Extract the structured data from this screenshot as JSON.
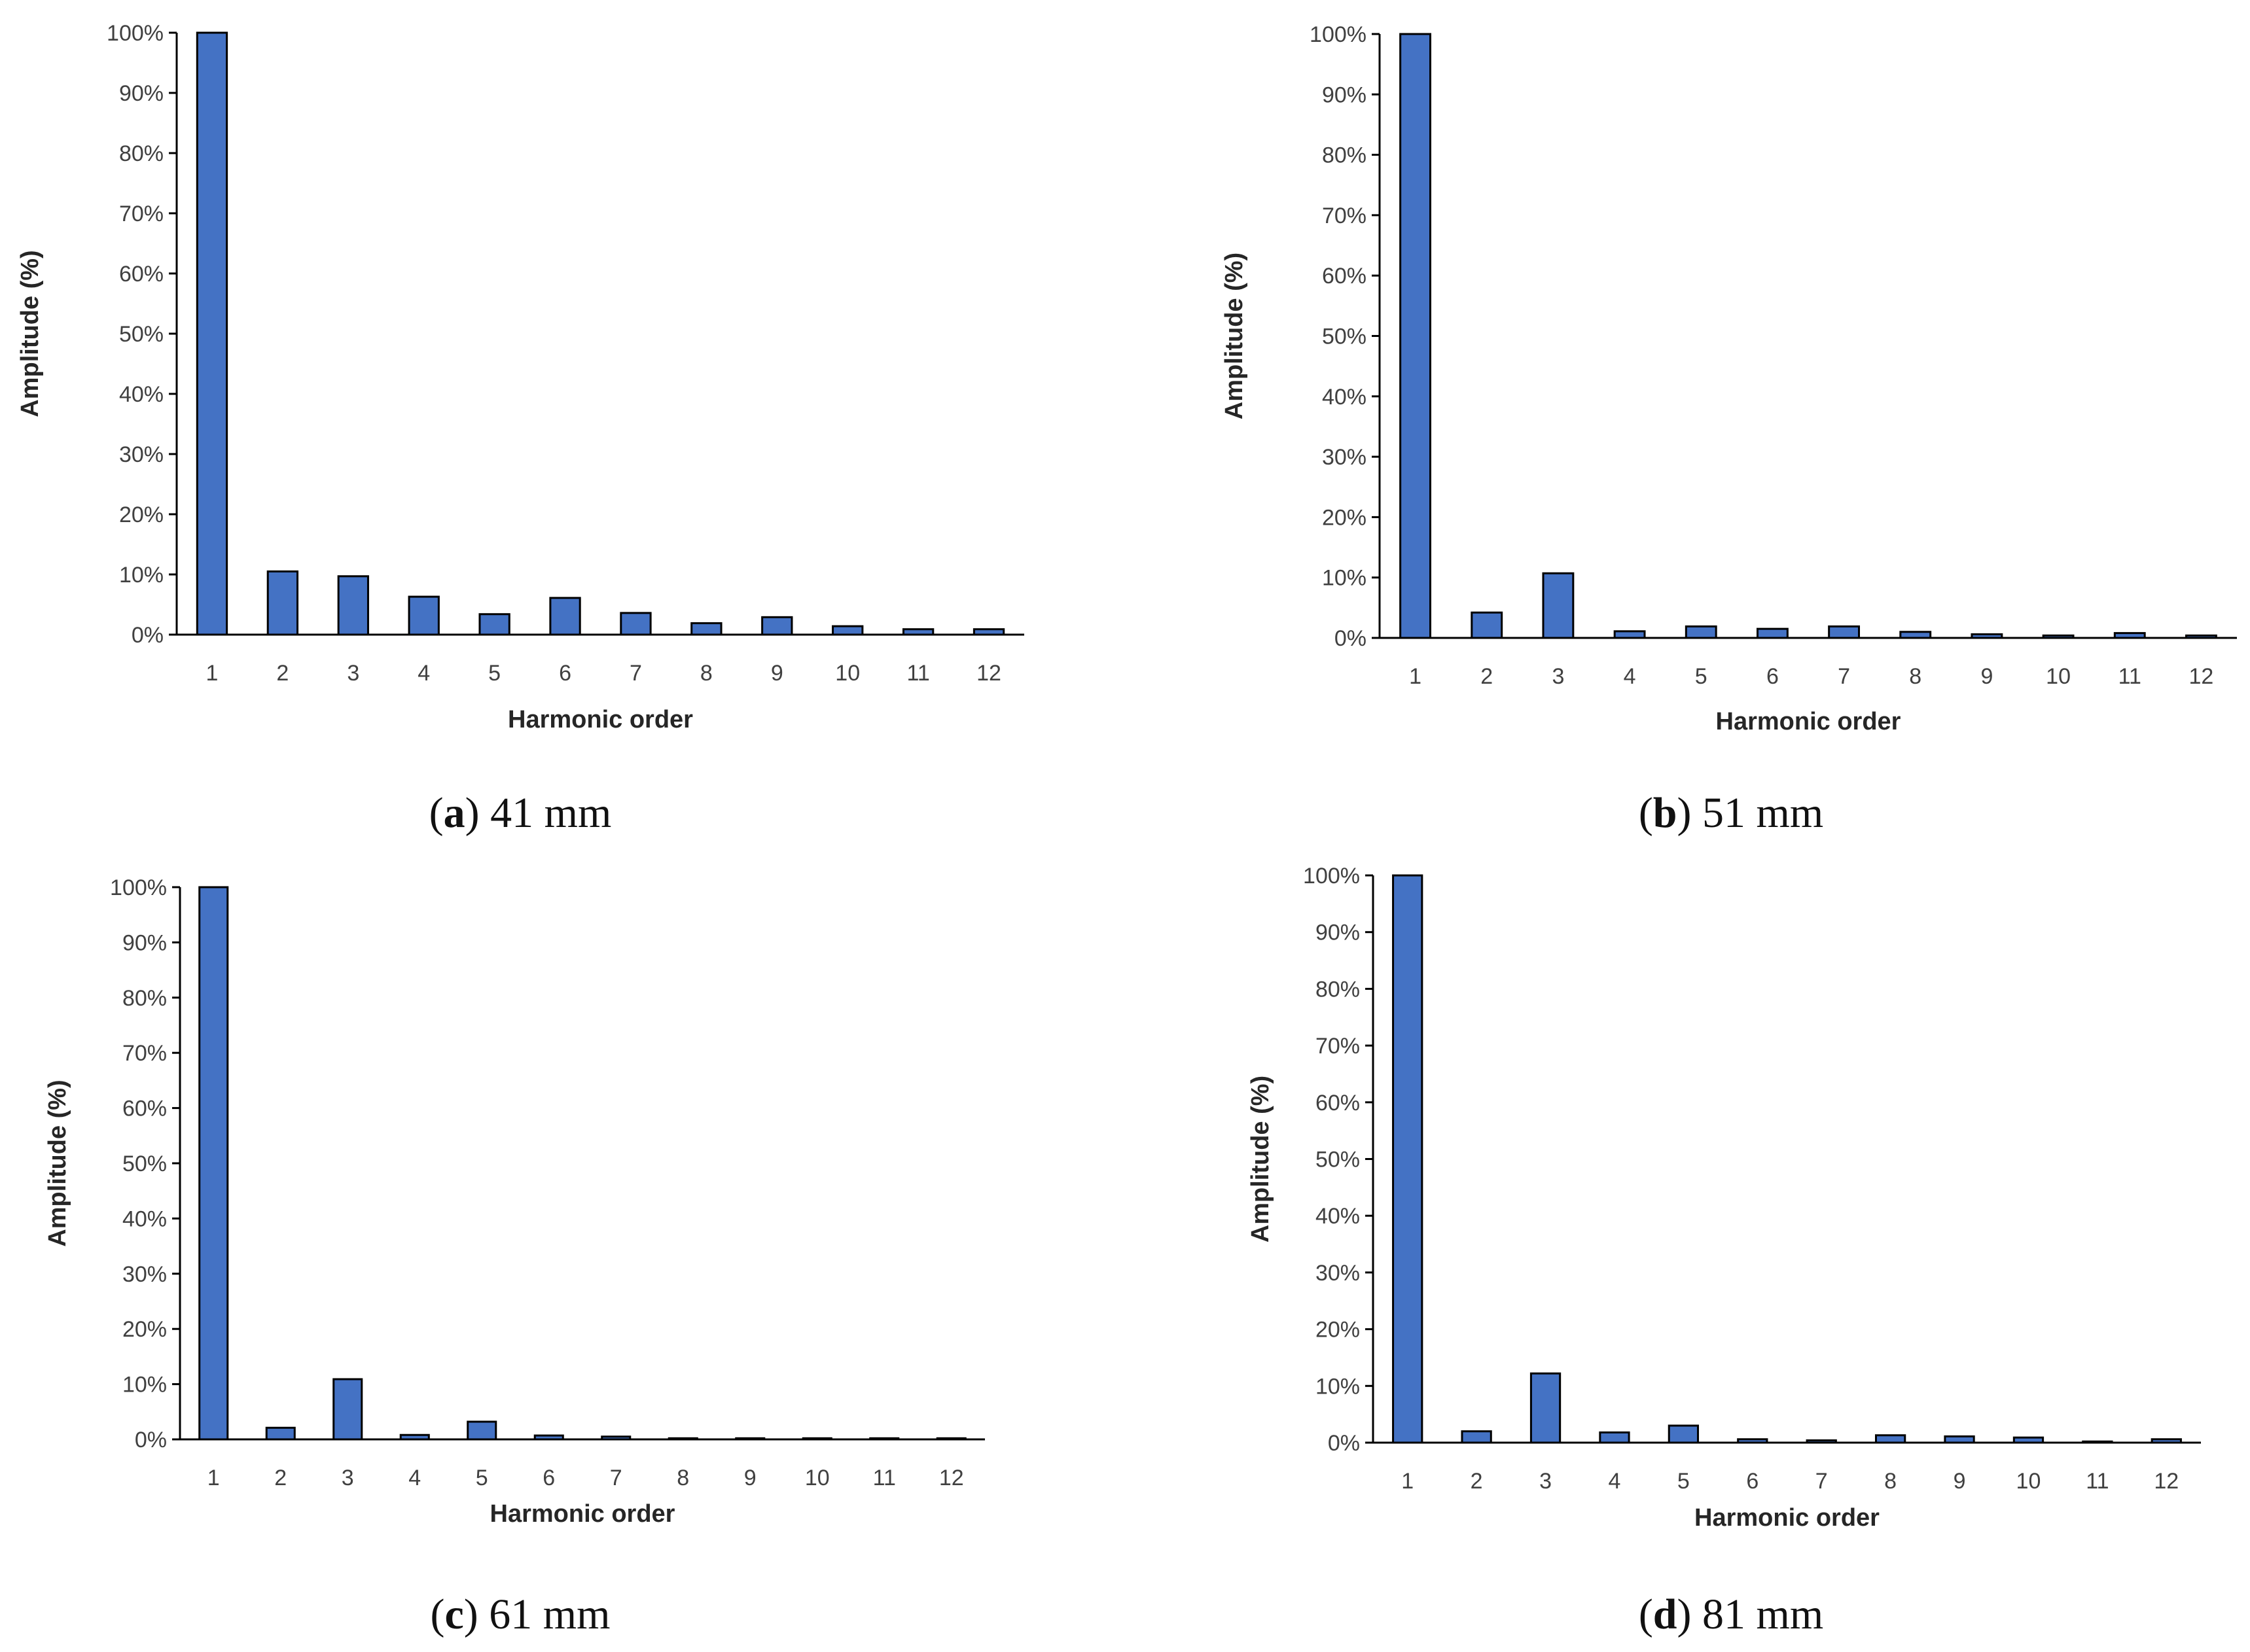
{
  "chart_data": [
    {
      "type": "bar",
      "panel_letter": "a",
      "caption": "41 mm",
      "categories": [
        "1",
        "2",
        "3",
        "4",
        "5",
        "6",
        "7",
        "8",
        "9",
        "10",
        "11",
        "12"
      ],
      "values": [
        100,
        10.5,
        9.7,
        6.3,
        3.4,
        6.1,
        3.6,
        1.9,
        2.9,
        1.4,
        0.9,
        0.9
      ],
      "xlabel": "Harmonic order",
      "ylabel": "Amplitude (%)",
      "ylim": [
        0,
        100
      ],
      "yticks": [
        "0%",
        "10%",
        "20%",
        "30%",
        "40%",
        "50%",
        "60%",
        "70%",
        "80%",
        "90%",
        "100%"
      ],
      "grid": false,
      "bar_color": "#4472C4"
    },
    {
      "type": "bar",
      "panel_letter": "b",
      "caption": "51 mm",
      "categories": [
        "1",
        "2",
        "3",
        "4",
        "5",
        "6",
        "7",
        "8",
        "9",
        "10",
        "11",
        "12"
      ],
      "values": [
        100,
        4.2,
        10.7,
        1.1,
        1.9,
        1.5,
        1.9,
        1.0,
        0.6,
        0.4,
        0.8,
        0.4
      ],
      "xlabel": "Harmonic order",
      "ylabel": "Amplitude (%)",
      "ylim": [
        0,
        100
      ],
      "yticks": [
        "0%",
        "10%",
        "20%",
        "30%",
        "40%",
        "50%",
        "60%",
        "70%",
        "80%",
        "90%",
        "100%"
      ],
      "grid": false,
      "bar_color": "#4472C4"
    },
    {
      "type": "bar",
      "panel_letter": "c",
      "caption": "61 mm",
      "categories": [
        "1",
        "2",
        "3",
        "4",
        "5",
        "6",
        "7",
        "8",
        "9",
        "10",
        "11",
        "12"
      ],
      "values": [
        100,
        2.1,
        10.9,
        0.8,
        3.2,
        0.7,
        0.5,
        0.2,
        0.2,
        0.2,
        0.2,
        0.2
      ],
      "xlabel": "Harmonic order",
      "ylabel": "Amplitude (%)",
      "ylim": [
        0,
        100
      ],
      "yticks": [
        "0%",
        "10%",
        "20%",
        "30%",
        "40%",
        "50%",
        "60%",
        "70%",
        "80%",
        "90%",
        "100%"
      ],
      "grid": false,
      "bar_color": "#4472C4"
    },
    {
      "type": "bar",
      "panel_letter": "d",
      "caption": "81 mm",
      "categories": [
        "1",
        "2",
        "3",
        "4",
        "5",
        "6",
        "7",
        "8",
        "9",
        "10",
        "11",
        "12"
      ],
      "values": [
        100,
        2.0,
        12.2,
        1.8,
        3.0,
        0.6,
        0.4,
        1.3,
        1.1,
        0.9,
        0.2,
        0.6
      ],
      "xlabel": "Harmonic order",
      "ylabel": "Amplitude (%)",
      "ylim": [
        0,
        100
      ],
      "yticks": [
        "0%",
        "10%",
        "20%",
        "30%",
        "40%",
        "50%",
        "60%",
        "70%",
        "80%",
        "90%",
        "100%"
      ],
      "grid": false,
      "bar_color": "#4472C4"
    }
  ]
}
